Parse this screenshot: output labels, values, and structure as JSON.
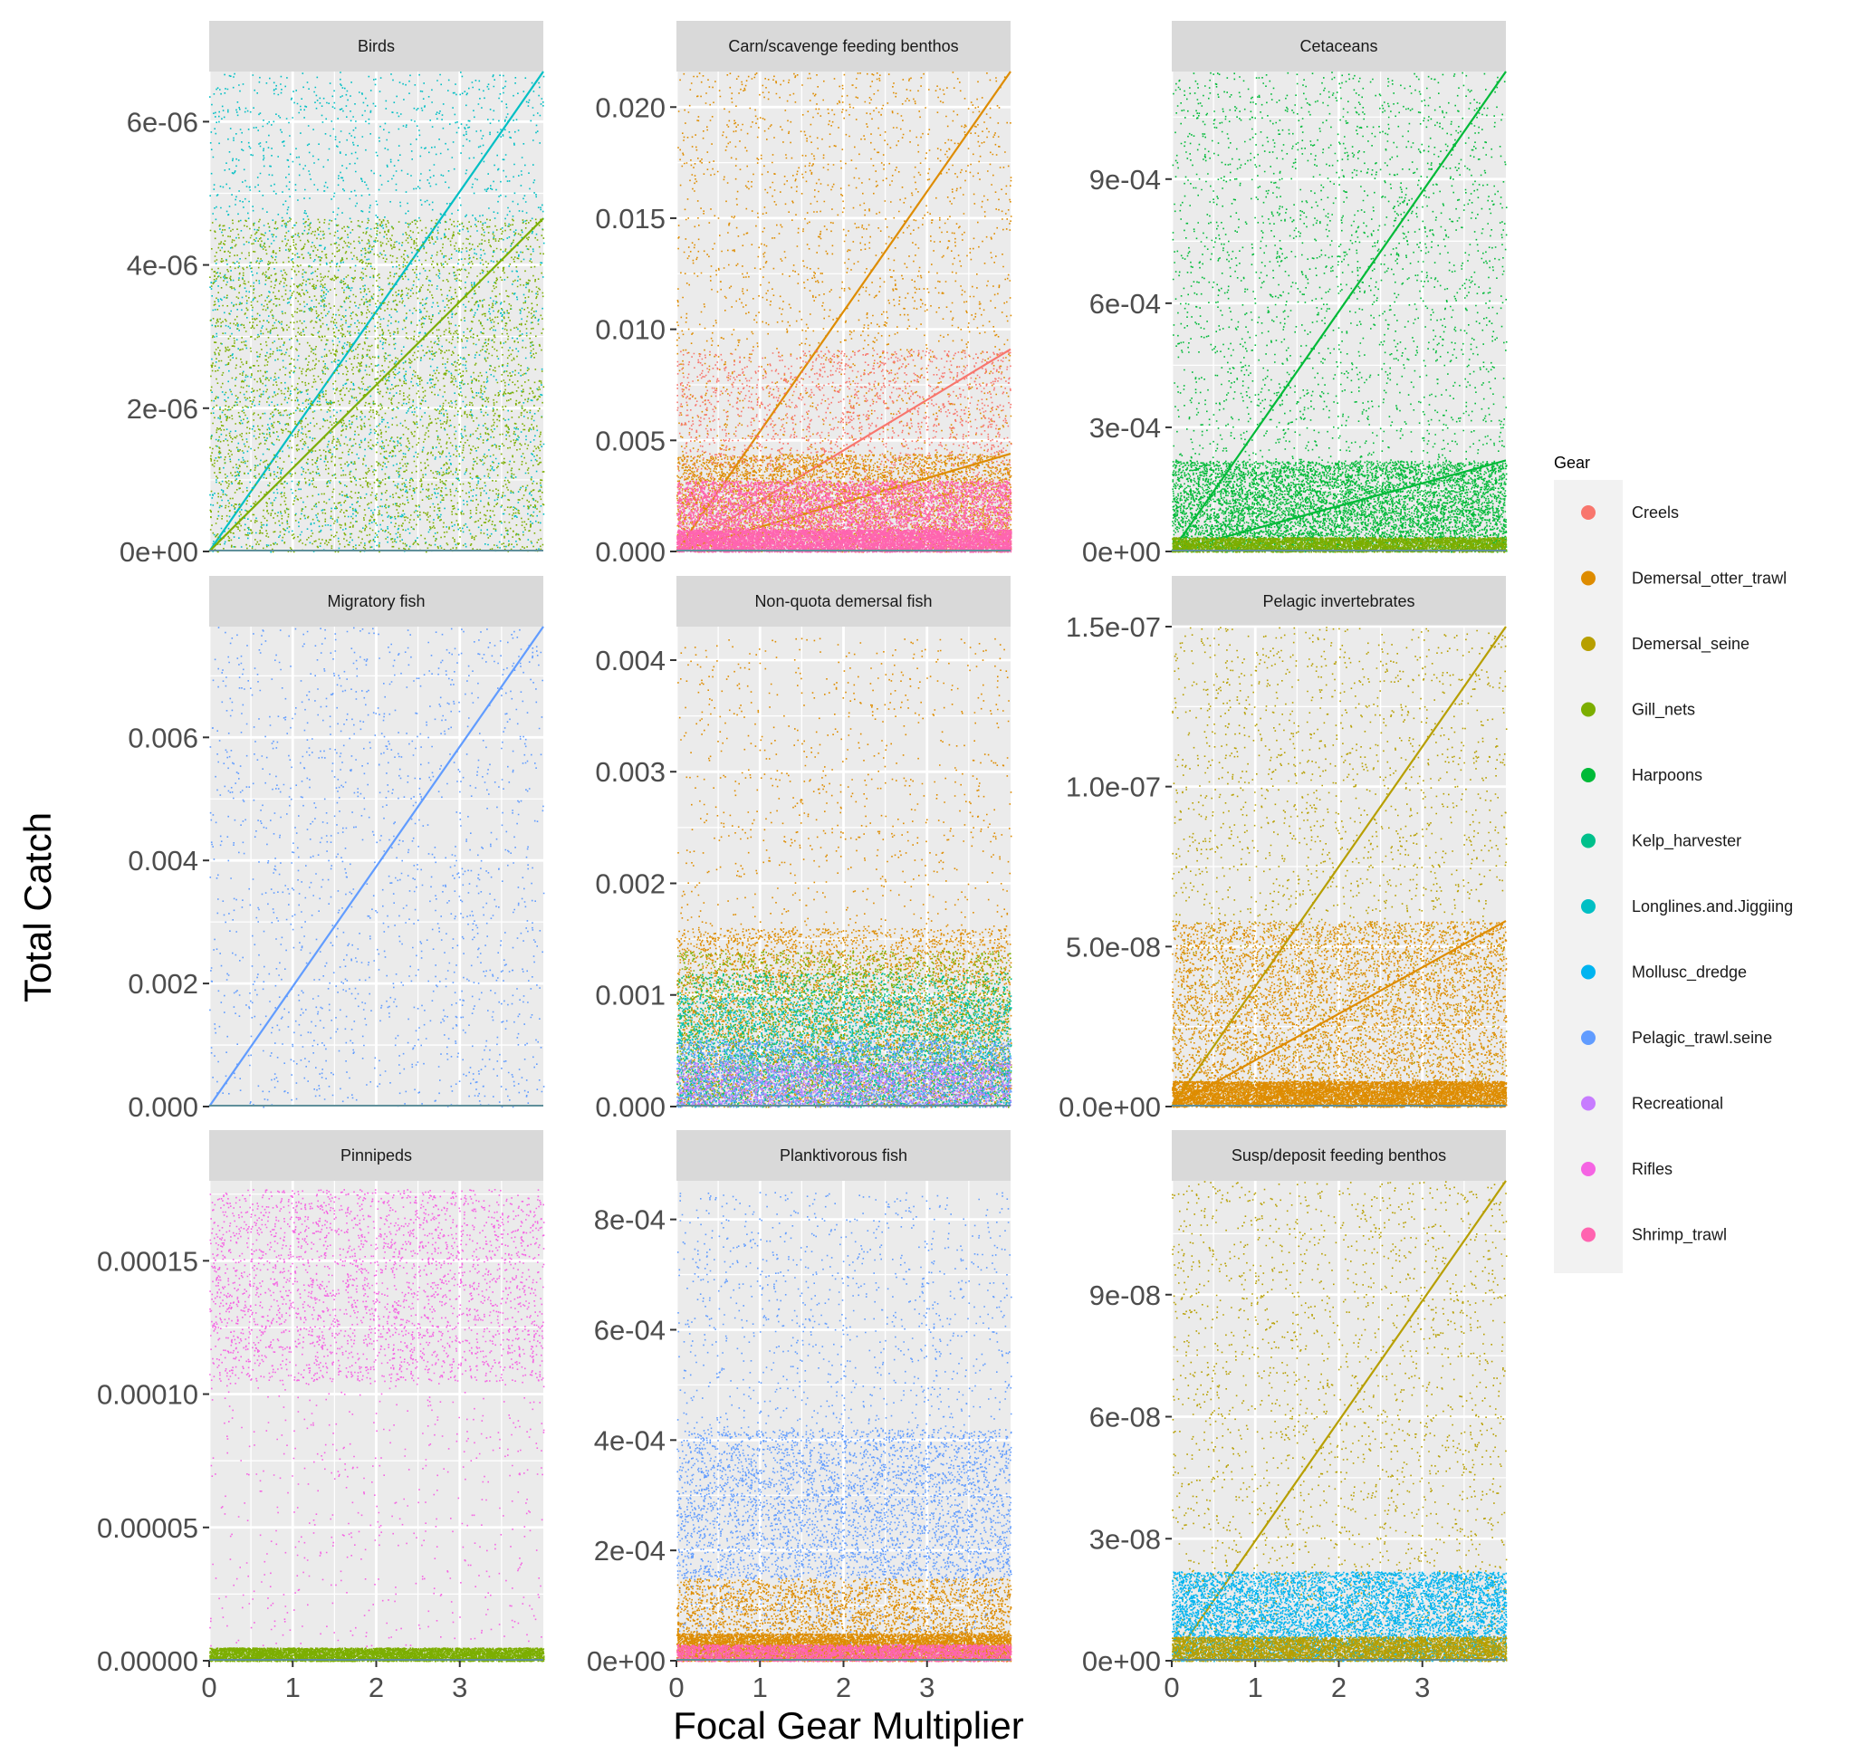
{
  "chart_data": {
    "type": "scatter",
    "xlabel": "Focal Gear Multiplier",
    "ylabel": "Total Catch",
    "xlim": [
      0,
      4
    ],
    "x_ticks": [
      "0",
      "1",
      "2",
      "3"
    ],
    "grid": true,
    "legend": {
      "title": "Gear",
      "placement": "right",
      "entries": [
        {
          "name": "Creels",
          "color": "#F8766D"
        },
        {
          "name": "Demersal_otter_trawl",
          "color": "#DE8C00"
        },
        {
          "name": "Demersal_seine",
          "color": "#B79F00"
        },
        {
          "name": "Gill_nets",
          "color": "#7CAE00"
        },
        {
          "name": "Harpoons",
          "color": "#00BA38"
        },
        {
          "name": "Kelp_harvester",
          "color": "#00C08B"
        },
        {
          "name": "Longlines.and.Jiggiing",
          "color": "#00BFC4"
        },
        {
          "name": "Mollusc_dredge",
          "color": "#00B4F0"
        },
        {
          "name": "Pelagic_trawl.seine",
          "color": "#619CFF"
        },
        {
          "name": "Recreational",
          "color": "#C77CFF"
        },
        {
          "name": "Rifles",
          "color": "#F564E3"
        },
        {
          "name": "Shrimp_trawl",
          "color": "#FF64B0"
        }
      ]
    },
    "panels": [
      {
        "title": "Birds",
        "ylim": [
          0,
          6.7e-06
        ],
        "y_ticks": [
          {
            "v": 0,
            "label": "0e+00"
          },
          {
            "v": 2e-06,
            "label": "2e-06"
          },
          {
            "v": 4e-06,
            "label": "4e-06"
          },
          {
            "v": 6e-06,
            "label": "6e-06"
          }
        ],
        "series": [
          {
            "gear": "Longlines.and.Jiggiing",
            "band": [
              0,
              6.7e-06
            ],
            "density": 0.7,
            "line": [
              0,
              6.7e-06
            ]
          },
          {
            "gear": "Gill_nets",
            "band": [
              0,
              4.65e-06
            ],
            "density": 1.2,
            "line": [
              0,
              4.65e-06
            ]
          }
        ]
      },
      {
        "title": "Carn/scavenge feeding benthos",
        "ylim": [
          0,
          0.0216
        ],
        "y_ticks": [
          {
            "v": 0,
            "label": "0.000"
          },
          {
            "v": 0.005,
            "label": "0.005"
          },
          {
            "v": 0.01,
            "label": "0.010"
          },
          {
            "v": 0.015,
            "label": "0.015"
          },
          {
            "v": 0.02,
            "label": "0.020"
          }
        ],
        "series": [
          {
            "gear": "Demersal_otter_trawl",
            "band": [
              0,
              0.0216
            ],
            "density": 0.65,
            "line": [
              0,
              0.0216
            ]
          },
          {
            "gear": "Creels",
            "band": [
              0,
              0.0091
            ],
            "density": 0.7,
            "line": [
              0,
              0.0091
            ]
          },
          {
            "gear": "Demersal_otter_trawl",
            "band": [
              0,
              0.0044
            ],
            "density": 1.2,
            "line": [
              0,
              0.0044
            ]
          },
          {
            "gear": "Shrimp_trawl",
            "band": [
              0,
              0.0032
            ],
            "density": 1.6
          },
          {
            "gear": "Shrimp_trawl",
            "band": [
              0,
              0.001
            ],
            "density": 1.6
          }
        ]
      },
      {
        "title": "Cetaceans",
        "ylim": [
          0,
          0.00116
        ],
        "y_ticks": [
          {
            "v": 0,
            "label": "0e+00"
          },
          {
            "v": 0.0003,
            "label": "3e-04"
          },
          {
            "v": 0.0006,
            "label": "6e-04"
          },
          {
            "v": 0.0009,
            "label": "9e-04"
          }
        ],
        "series": [
          {
            "gear": "Harpoons",
            "band": [
              0,
              0.00116
            ],
            "density": 0.8,
            "line": [
              0,
              0.00116
            ]
          },
          {
            "gear": "Harpoons",
            "band": [
              0,
              0.00022
            ],
            "density": 1.8,
            "line": [
              0,
              0.00022
            ]
          },
          {
            "gear": "Gill_nets",
            "band": [
              0,
              3.5e-05
            ],
            "density": 1.2
          }
        ]
      },
      {
        "title": "Migratory fish",
        "ylim": [
          0,
          0.0078
        ],
        "y_ticks": [
          {
            "v": 0,
            "label": "0.000"
          },
          {
            "v": 0.002,
            "label": "0.002"
          },
          {
            "v": 0.004,
            "label": "0.004"
          },
          {
            "v": 0.006,
            "label": "0.006"
          }
        ],
        "series": [
          {
            "gear": "Pelagic_trawl.seine",
            "band": [
              0,
              0.0078
            ],
            "density": 0.45,
            "line": [
              0,
              0.0078
            ]
          }
        ]
      },
      {
        "title": "Non-quota demersal fish",
        "ylim": [
          0,
          0.0043
        ],
        "y_ticks": [
          {
            "v": 0,
            "label": "0.000"
          },
          {
            "v": 0.001,
            "label": "0.001"
          },
          {
            "v": 0.002,
            "label": "0.002"
          },
          {
            "v": 0.003,
            "label": "0.003"
          },
          {
            "v": 0.004,
            "label": "0.004"
          }
        ],
        "series": [
          {
            "gear": "Demersal_otter_trawl",
            "band": [
              0,
              0.0042
            ],
            "density": 0.35
          },
          {
            "gear": "Demersal_otter_trawl",
            "band": [
              0,
              0.0016
            ],
            "density": 1.2
          },
          {
            "gear": "Gill_nets",
            "band": [
              0,
              0.0014
            ],
            "density": 0.8
          },
          {
            "gear": "Kelp_harvester",
            "band": [
              0,
              0.0012
            ],
            "density": 0.8
          },
          {
            "gear": "Longlines.and.Jiggiing",
            "band": [
              0,
              0.001
            ],
            "density": 0.6
          },
          {
            "gear": "Pelagic_trawl.seine",
            "band": [
              0,
              0.0006
            ],
            "density": 0.7
          },
          {
            "gear": "Recreational",
            "band": [
              0,
              0.0004
            ],
            "density": 0.5
          }
        ]
      },
      {
        "title": "Pelagic invertebrates",
        "ylim": [
          0,
          1.5e-07
        ],
        "y_ticks": [
          {
            "v": 0,
            "label": "0.0e+00"
          },
          {
            "v": 5e-08,
            "label": "5.0e-08"
          },
          {
            "v": 1e-07,
            "label": "1.0e-07"
          },
          {
            "v": 1.5e-07,
            "label": "1.5e-07"
          }
        ],
        "series": [
          {
            "gear": "Demersal_seine",
            "band": [
              0,
              1.5e-07
            ],
            "density": 0.65,
            "line": [
              0,
              1.5e-07
            ]
          },
          {
            "gear": "Demersal_otter_trawl",
            "band": [
              0,
              5.8e-08
            ],
            "density": 1.5,
            "line": [
              0,
              5.8e-08
            ]
          },
          {
            "gear": "Demersal_otter_trawl",
            "band": [
              0,
              8e-09
            ],
            "density": 2.0
          }
        ]
      },
      {
        "title": "Pinnipeds",
        "ylim": [
          0,
          0.00018
        ],
        "y_ticks": [
          {
            "v": 0,
            "label": "0.00000"
          },
          {
            "v": 5e-05,
            "label": "0.00005"
          },
          {
            "v": 0.0001,
            "label": "0.00010"
          },
          {
            "v": 0.00015,
            "label": "0.00015"
          }
        ],
        "series": [
          {
            "gear": "Rifles",
            "band": [
              0.000105,
              0.000177
            ],
            "density": 0.8
          },
          {
            "gear": "Rifles",
            "band": [
              0,
              0.000105
            ],
            "density": 0.15
          },
          {
            "gear": "Gill_nets",
            "band": [
              0,
              5e-06
            ],
            "density": 1.6
          }
        ]
      },
      {
        "title": "Planktivorous fish",
        "ylim": [
          0,
          0.00087
        ],
        "y_ticks": [
          {
            "v": 0,
            "label": "0e+00"
          },
          {
            "v": 0.0002,
            "label": "2e-04"
          },
          {
            "v": 0.0004,
            "label": "4e-04"
          },
          {
            "v": 0.0006,
            "label": "6e-04"
          },
          {
            "v": 0.0008,
            "label": "8e-04"
          }
        ],
        "series": [
          {
            "gear": "Pelagic_trawl.seine",
            "band": [
              0,
              0.00085
            ],
            "density": 0.55
          },
          {
            "gear": "Pelagic_trawl.seine",
            "band": [
              0.00015,
              0.00042
            ],
            "density": 0.9
          },
          {
            "gear": "Demersal_otter_trawl",
            "band": [
              0,
              0.00015
            ],
            "density": 0.9
          },
          {
            "gear": "Demersal_otter_trawl",
            "band": [
              0,
              5e-05
            ],
            "density": 1.8
          },
          {
            "gear": "Shrimp_trawl",
            "band": [
              0,
              3e-05
            ],
            "density": 1.0
          }
        ]
      },
      {
        "title": "Susp/deposit feeding benthos",
        "ylim": [
          0,
          1.18e-07
        ],
        "y_ticks": [
          {
            "v": 0,
            "label": "0e+00"
          },
          {
            "v": 3e-08,
            "label": "3e-08"
          },
          {
            "v": 6e-08,
            "label": "6e-08"
          },
          {
            "v": 9e-08,
            "label": "9e-08"
          }
        ],
        "series": [
          {
            "gear": "Demersal_seine",
            "band": [
              0,
              1.18e-07
            ],
            "density": 0.65,
            "line": [
              0,
              1.18e-07
            ]
          },
          {
            "gear": "Mollusc_dredge",
            "band": [
              0,
              2.2e-08
            ],
            "density": 2.0
          },
          {
            "gear": "Demersal_seine",
            "band": [
              0,
              6e-09
            ],
            "density": 1.5
          }
        ]
      }
    ]
  }
}
